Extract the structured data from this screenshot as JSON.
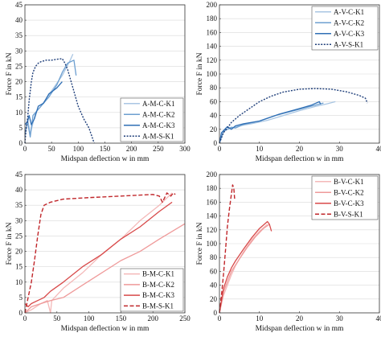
{
  "chart_data": [
    {
      "type": "line",
      "xlabel": "Midspan deflection w in mm",
      "ylabel": "Force F in kN",
      "xlim": [
        0,
        300
      ],
      "ylim": [
        0,
        45
      ],
      "xticks": [
        0,
        50,
        100,
        150,
        200,
        250,
        300
      ],
      "yticks": [
        0,
        5,
        10,
        15,
        20,
        25,
        30,
        35,
        40,
        45
      ],
      "grid": true,
      "legend_position": "bottom-right",
      "series": [
        {
          "name": "A-M-C-K1",
          "color": "#a9c6e3",
          "dash": "solid",
          "x": [
            0,
            5,
            10,
            20,
            30,
            50,
            70,
            85,
            90
          ],
          "y": [
            2,
            8,
            3,
            10,
            12,
            17,
            22,
            27,
            29
          ]
        },
        {
          "name": "A-M-C-K2",
          "color": "#6d9fd0",
          "dash": "solid",
          "x": [
            0,
            5,
            10,
            15,
            25,
            35,
            45,
            60,
            70,
            80,
            92,
            96
          ],
          "y": [
            3,
            7,
            2,
            9,
            11,
            13,
            15,
            19,
            23,
            26,
            27,
            22
          ]
        },
        {
          "name": "A-M-C-K3",
          "color": "#2f6fb5",
          "dash": "solid",
          "x": [
            0,
            5,
            8,
            12,
            18,
            25,
            35,
            45,
            60,
            70
          ],
          "y": [
            6,
            7,
            9,
            6,
            8,
            12,
            13,
            16,
            18,
            20
          ]
        },
        {
          "name": "A-M-S-K1",
          "color": "#1f3f7a",
          "dash": "dotted",
          "x": [
            0,
            2,
            5,
            8,
            12,
            15,
            20,
            25,
            30,
            40,
            50,
            60,
            70,
            75,
            80,
            90,
            100,
            110,
            120,
            130
          ],
          "y": [
            0,
            4,
            8,
            14,
            20,
            23,
            25,
            26,
            26.5,
            27,
            27,
            27.3,
            27.5,
            26,
            24,
            18,
            12,
            8,
            5,
            0
          ]
        }
      ]
    },
    {
      "type": "line",
      "xlabel": "Midspan deflection w in mm",
      "ylabel": "Force F in kN",
      "xlim": [
        0,
        40
      ],
      "ylim": [
        0,
        200
      ],
      "xticks": [
        0,
        10,
        20,
        30,
        40
      ],
      "yticks": [
        0,
        20,
        40,
        60,
        80,
        100,
        120,
        140,
        160,
        180,
        200
      ],
      "grid": true,
      "legend_position": "top-right",
      "series": [
        {
          "name": "A-V-C-K1",
          "color": "#a9c6e3",
          "dash": "solid",
          "x": [
            0,
            1,
            2,
            3,
            5,
            8,
            12,
            16,
            20,
            24,
            27,
            29
          ],
          "y": [
            0,
            18,
            20,
            22,
            25,
            28,
            33,
            40,
            47,
            53,
            57,
            60
          ]
        },
        {
          "name": "A-V-C-K2",
          "color": "#6d9fd0",
          "dash": "solid",
          "x": [
            0,
            1,
            2,
            3,
            4,
            6,
            10,
            14,
            18,
            22,
            26
          ],
          "y": [
            0,
            17,
            20,
            23,
            22,
            27,
            32,
            40,
            46,
            52,
            58
          ]
        },
        {
          "name": "A-V-C-K3",
          "color": "#2f6fb5",
          "dash": "solid",
          "x": [
            0,
            0.5,
            1,
            2,
            3,
            4,
            6,
            10,
            15,
            20,
            23,
            25,
            25.3
          ],
          "y": [
            0,
            15,
            18,
            24,
            20,
            25,
            28,
            32,
            42,
            50,
            55,
            60,
            56
          ]
        },
        {
          "name": "A-V-S-K1",
          "color": "#1f3f7a",
          "dash": "dotted",
          "x": [
            0,
            1,
            2,
            3,
            5,
            8,
            10,
            13,
            16,
            20,
            24,
            28,
            32,
            35,
            36.5,
            37
          ],
          "y": [
            0,
            15,
            22,
            30,
            40,
            52,
            60,
            68,
            74,
            78,
            79,
            78,
            74,
            69,
            65,
            58
          ]
        }
      ]
    },
    {
      "type": "line",
      "xlabel": "Midspan deflection w in mm",
      "ylabel": "Force F in kN",
      "xlim": [
        0,
        250
      ],
      "ylim": [
        0,
        45
      ],
      "xticks": [
        0,
        50,
        100,
        150,
        200,
        250
      ],
      "yticks": [
        0,
        5,
        10,
        15,
        20,
        25,
        30,
        35,
        40,
        45
      ],
      "grid": true,
      "legend_position": "bottom-right",
      "series": [
        {
          "name": "B-M-C-K1",
          "color": "#f4b8b8",
          "dash": "solid",
          "x": [
            0,
            10,
            25,
            35,
            40,
            42,
            60,
            90,
            120,
            150,
            180,
            210,
            230
          ],
          "y": [
            0,
            1,
            3,
            4,
            0,
            4,
            8,
            13,
            19,
            24,
            30,
            35,
            39
          ]
        },
        {
          "name": "B-M-C-K2",
          "color": "#ef9a9a",
          "dash": "solid",
          "x": [
            0,
            10,
            25,
            40,
            60,
            90,
            120,
            150,
            180,
            210,
            250
          ],
          "y": [
            0,
            2,
            3,
            4,
            5,
            9,
            13,
            17,
            20,
            24,
            29
          ]
        },
        {
          "name": "B-M-C-K3",
          "color": "#d84a4a",
          "dash": "solid",
          "x": [
            0,
            5,
            10,
            20,
            30,
            40,
            60,
            90,
            120,
            150,
            180,
            210,
            230
          ],
          "y": [
            3,
            2,
            3,
            4,
            5,
            7,
            10,
            15,
            19,
            24,
            28,
            33,
            36
          ]
        },
        {
          "name": "B-M-S-K1",
          "color": "#c0262a",
          "dash": "dashed",
          "x": [
            0,
            5,
            10,
            15,
            20,
            25,
            30,
            40,
            60,
            100,
            150,
            200,
            210,
            215,
            222,
            228,
            232,
            235
          ],
          "y": [
            0,
            5,
            10,
            17,
            25,
            32,
            35,
            36,
            37,
            37.5,
            38,
            38.5,
            38,
            36,
            39,
            38,
            39,
            38.5
          ]
        }
      ]
    },
    {
      "type": "line",
      "xlabel": "Midspan deflection w in mm",
      "ylabel": "Force F in kN",
      "xlim": [
        0,
        40
      ],
      "ylim": [
        0,
        200
      ],
      "xticks": [
        0,
        10,
        20,
        30,
        40
      ],
      "yticks": [
        0,
        20,
        40,
        60,
        80,
        100,
        120,
        140,
        160,
        180,
        200
      ],
      "grid": true,
      "legend_position": "top-right",
      "series": [
        {
          "name": "B-V-C-K1",
          "color": "#f4b8b8",
          "dash": "solid",
          "x": [
            0,
            1,
            2,
            3,
            4,
            6,
            8,
            10,
            12
          ],
          "y": [
            0,
            25,
            40,
            55,
            68,
            88,
            105,
            118,
            128
          ]
        },
        {
          "name": "B-V-C-K2",
          "color": "#ef9a9a",
          "dash": "solid",
          "x": [
            0,
            1,
            2,
            3,
            5,
            7,
            9,
            11,
            12.5
          ],
          "y": [
            0,
            30,
            45,
            60,
            78,
            95,
            110,
            122,
            128
          ]
        },
        {
          "name": "B-V-C-K3",
          "color": "#d84a4a",
          "dash": "solid",
          "x": [
            0,
            1,
            2,
            3,
            4,
            6,
            8,
            10,
            12,
            12.5,
            13
          ],
          "y": [
            0,
            35,
            52,
            65,
            75,
            92,
            108,
            122,
            132,
            128,
            118
          ]
        },
        {
          "name": "B-V-S-K1",
          "color": "#c0262a",
          "dash": "dashed",
          "x": [
            0,
            0.5,
            1,
            1.5,
            2,
            2.5,
            3,
            3.3,
            3.6,
            3.8
          ],
          "y": [
            0,
            25,
            55,
            90,
            125,
            150,
            172,
            185,
            180,
            165
          ]
        }
      ]
    }
  ]
}
